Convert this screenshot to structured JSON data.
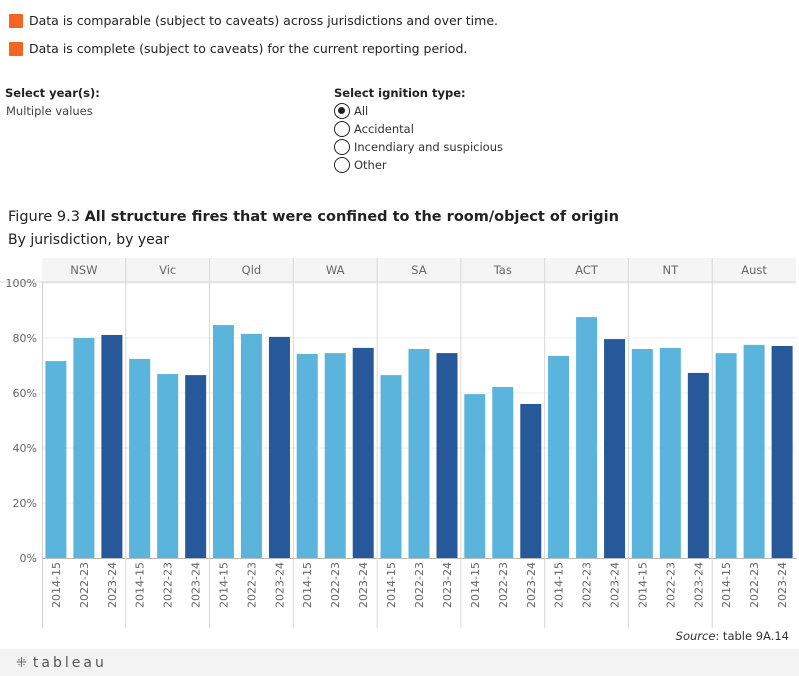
{
  "legend": [
    {
      "text": "Data is comparable (subject to caveats) across jurisdictions and over time.",
      "color": "#f26522"
    },
    {
      "text": "Data is complete (subject to caveats) for the current reporting period.",
      "color": "#f26522"
    }
  ],
  "filters": {
    "year": {
      "label": "Select year(s):",
      "value": "Multiple values"
    },
    "ignition": {
      "label": "Select ignition type:",
      "options": [
        {
          "label": "All",
          "selected": true
        },
        {
          "label": "Accidental",
          "selected": false
        },
        {
          "label": "Incendiary and suspicious",
          "selected": false
        },
        {
          "label": "Other",
          "selected": false
        }
      ]
    }
  },
  "figure": {
    "prefix": "Figure 9.3 ",
    "title": "All structure fires that were confined to the room/object of origin",
    "subtitle": "By jurisdiction, by year"
  },
  "source": {
    "label": "Source",
    "text": ": table 9A.14"
  },
  "footer": {
    "logo": "tableau"
  },
  "chart_data": {
    "type": "bar",
    "title": "All structure fires that were confined to the room/object of origin",
    "subtitle": "By jurisdiction, by year",
    "xlabel": "",
    "ylabel": "",
    "ylim": [
      0,
      100
    ],
    "yticks": [
      0,
      20,
      40,
      60,
      80,
      100
    ],
    "ytick_labels": [
      "0%",
      "20%",
      "40%",
      "60%",
      "80%",
      "100%"
    ],
    "grid": true,
    "categories": [
      "NSW",
      "Vic",
      "Qld",
      "WA",
      "SA",
      "Tas",
      "ACT",
      "NT",
      "Aust"
    ],
    "years": [
      "2014-15",
      "2022-23",
      "2023-24"
    ],
    "series": [
      {
        "name": "2014-15",
        "color": "#5ab4dc",
        "values": [
          71.6,
          72.4,
          84.7,
          74.2,
          66.5,
          59.6,
          73.5,
          76.0,
          74.5
        ]
      },
      {
        "name": "2022-23",
        "color": "#5ab4dc",
        "values": [
          80.0,
          66.9,
          81.5,
          74.5,
          76.0,
          62.2,
          87.6,
          76.4,
          77.5
        ]
      },
      {
        "name": "2023-24",
        "color": "#26589a",
        "values": [
          81.1,
          66.5,
          80.4,
          76.4,
          74.5,
          56.0,
          79.6,
          67.3,
          77.1
        ]
      }
    ]
  }
}
